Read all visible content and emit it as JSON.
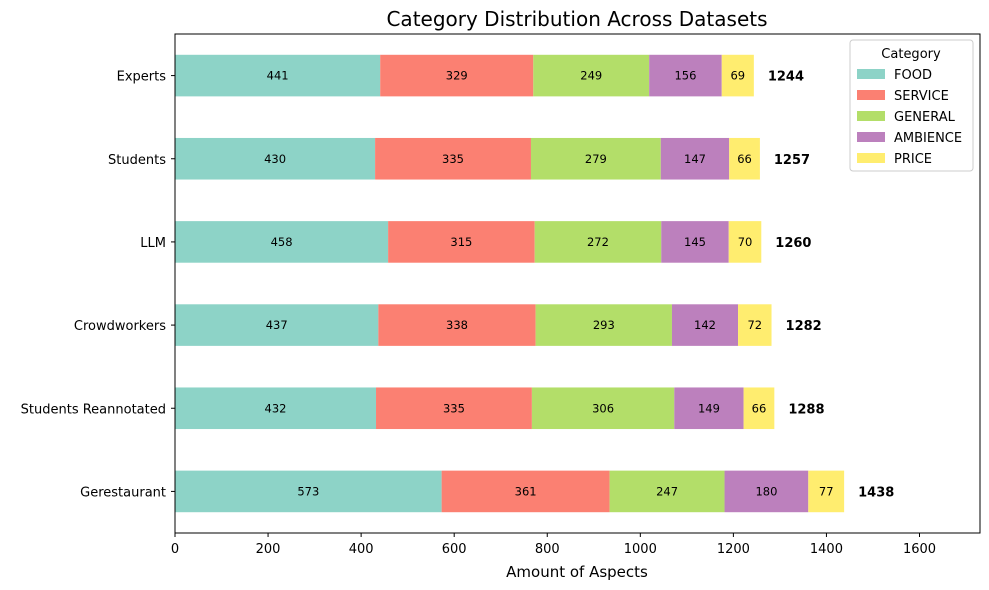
{
  "chart_data": {
    "type": "bar",
    "orientation": "horizontal",
    "stacked": true,
    "title": "Category Distribution Across Datasets",
    "xlabel": "Amount of Aspects",
    "ylabel": "",
    "xlim": [
      0,
      1730
    ],
    "xticks": [
      0,
      200,
      400,
      600,
      800,
      1000,
      1200,
      1400,
      1600
    ],
    "grid": false,
    "categories": [
      "Experts",
      "Students",
      "LLM",
      "Crowdworkers",
      "Students Reannotated",
      "Gerestaurant"
    ],
    "series": [
      {
        "name": "FOOD",
        "color": "#8dd3c7",
        "values": [
          441,
          430,
          458,
          437,
          432,
          573
        ]
      },
      {
        "name": "SERVICE",
        "color": "#fb8072",
        "values": [
          329,
          335,
          315,
          338,
          335,
          361
        ]
      },
      {
        "name": "GENERAL",
        "color": "#b3de69",
        "values": [
          249,
          279,
          272,
          293,
          306,
          247
        ]
      },
      {
        "name": "AMBIENCE",
        "color": "#bc80bd",
        "values": [
          156,
          147,
          145,
          142,
          149,
          180
        ]
      },
      {
        "name": "PRICE",
        "color": "#ffed6f",
        "values": [
          69,
          66,
          70,
          72,
          66,
          77
        ]
      }
    ],
    "totals": [
      1244,
      1257,
      1260,
      1282,
      1288,
      1438
    ],
    "legend": {
      "title": "Category",
      "placement": "top-right"
    }
  }
}
